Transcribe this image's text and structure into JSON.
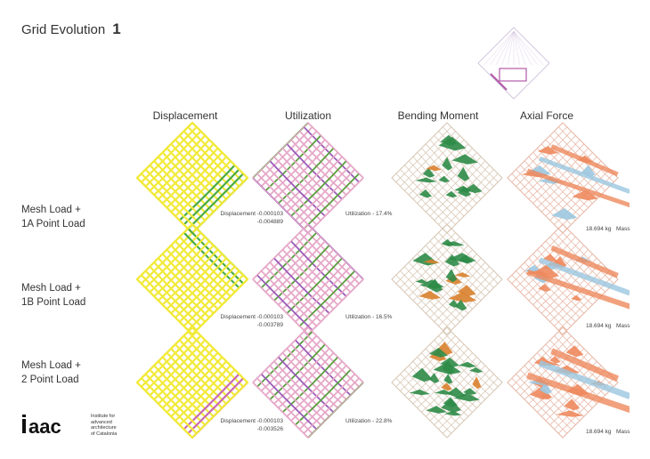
{
  "title": {
    "text": "Grid Evolution",
    "number": "1"
  },
  "columns": [
    "Displacement",
    "Utilization",
    "Bending Moment",
    "Axial Force"
  ],
  "rows": [
    {
      "label_line1": "Mesh Load +",
      "label_line2": "1A Point Load",
      "displacement_line1": "Displacement -0.000103",
      "displacement_line2": "-0.004889",
      "utilization": "Utilization - 17.4%",
      "mass_value": "18.694 kg",
      "mass_label": "Mass"
    },
    {
      "label_line1": "Mesh Load +",
      "label_line2": "1B Point Load",
      "displacement_line1": "Displacement -0.000103",
      "displacement_line2": "-0.003789",
      "utilization": "Utilization - 16.5%",
      "mass_value": "18.694 kg",
      "mass_label": "Mass"
    },
    {
      "label_line1": "Mesh Load +",
      "label_line2": "2 Point Load",
      "displacement_line1": "Displacement -0.000103",
      "displacement_line2": "-0.003526",
      "utilization": "Utilization - 22.8%",
      "mass_value": "18.694 kg",
      "mass_label": "Mass"
    }
  ],
  "logo": {
    "text": "Iaac",
    "institute": [
      "Institute for",
      "advanced",
      "architecture",
      "of Catalonia"
    ]
  },
  "colors": {
    "displacement": "#f2ea3a",
    "displacement_accent": "#4aaa46",
    "displacement_pink": "#c86ab4",
    "utilization_pink": "#e6a8c8",
    "utilization_green": "#5a9e3e",
    "utilization_purple": "#9a5cb8",
    "bending_green": "#2e8b47",
    "bending_orange": "#d9812e",
    "bending_line": "#d8c8b6",
    "axial_orange": "#ee8a5e",
    "axial_blue": "#9cc8e0",
    "axial_line": "#e7b9a8"
  }
}
